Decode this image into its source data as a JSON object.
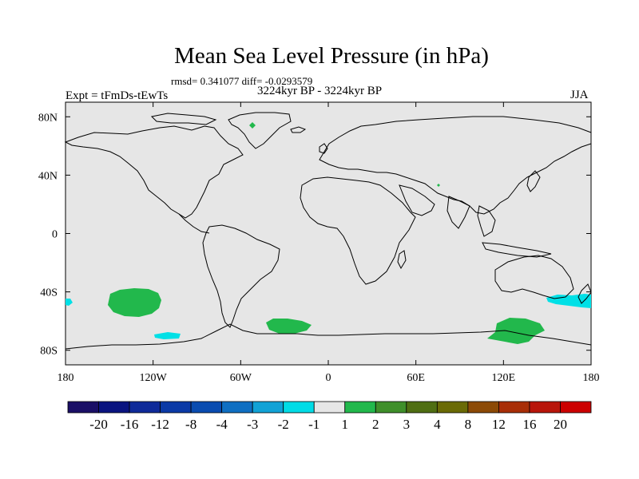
{
  "title": "Mean Sea Level Pressure (in hPa)",
  "stats": "rmsd= 0.341077 diff= -0.0293579",
  "period": "3224kyr BP - 3224kyr BP",
  "experiment": "Expt = tFmDs-tEwTs",
  "season": "JJA",
  "map": {
    "projection": "cylindrical-equidistant",
    "lon_range": [
      -180,
      180
    ],
    "lat_range": [
      -90,
      90
    ],
    "x_ticks": [
      {
        "value": -180,
        "label": "180"
      },
      {
        "value": -120,
        "label": "120W"
      },
      {
        "value": -60,
        "label": "60W"
      },
      {
        "value": 0,
        "label": "0"
      },
      {
        "value": 60,
        "label": "60E"
      },
      {
        "value": 120,
        "label": "120E"
      },
      {
        "value": 180,
        "label": "180"
      }
    ],
    "y_ticks": [
      {
        "value": 80,
        "label": "80N"
      },
      {
        "value": 40,
        "label": "40N"
      },
      {
        "value": 0,
        "label": "0"
      },
      {
        "value": -40,
        "label": "40S"
      },
      {
        "value": -80,
        "label": "80S"
      }
    ],
    "background_color": "#e6e6e6",
    "anomaly_regions": [
      {
        "name": "south-pacific-positive",
        "category": "1 to 2",
        "color": "#22b84c",
        "lon": -130,
        "lat": -46
      },
      {
        "name": "south-atlantic-positive",
        "category": "1 to 2",
        "color": "#22b84c",
        "lon": -27,
        "lat": -63
      },
      {
        "name": "southern-ocean-positive",
        "category": "1 to 2",
        "color": "#22b84c",
        "lon": 130,
        "lat": -67
      },
      {
        "name": "south-pacific-negative",
        "category": "-2 to -1",
        "color": "#00e0e6",
        "lon": -113,
        "lat": -68
      },
      {
        "name": "tasman-negative",
        "category": "-2 to -1",
        "color": "#00e0e6",
        "lon": 163,
        "lat": -46
      },
      {
        "name": "dateline-negative",
        "category": "-2 to -1",
        "color": "#00e0e6",
        "lon": -178,
        "lat": -46
      },
      {
        "name": "greenland-positive",
        "category": "1 to 2",
        "color": "#22b84c",
        "lon": -51,
        "lat": 78
      }
    ]
  },
  "colorbar": {
    "labels": [
      "-20",
      "-16",
      "-12",
      "-8",
      "-4",
      "-3",
      "-2",
      "-1",
      "1",
      "2",
      "3",
      "4",
      "8",
      "12",
      "16",
      "20"
    ],
    "colors": [
      "#1a0f66",
      "#0a1480",
      "#0f2a99",
      "#0b3aa6",
      "#0a4cb0",
      "#0f6fc2",
      "#11a2d6",
      "#00dce6",
      "#e6e6e6",
      "#22b84c",
      "#3f8f2a",
      "#4f6e12",
      "#6a6a05",
      "#8c4a06",
      "#a82e07",
      "#b8150a",
      "#cc0000"
    ]
  }
}
